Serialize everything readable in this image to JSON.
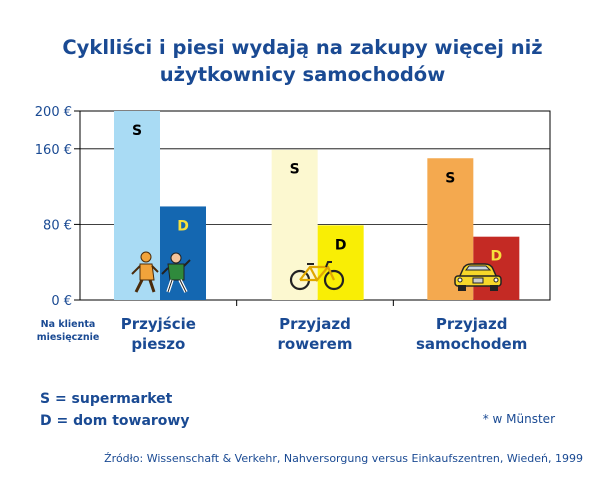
{
  "title_line1": "Cyklliści i piesi wydają na zakupy więcej niż",
  "title_line2": "użytkownicy samochodów",
  "chart_data": {
    "type": "bar",
    "title": "Cyklliści i piesi wydają na zakupy więcej niż użytkownicy samochodów",
    "ylabel": "",
    "ylabel_note": [
      "Na klienta",
      "miesięcznie"
    ],
    "ylim": [
      0,
      200
    ],
    "yticks": [
      0,
      80,
      160,
      200
    ],
    "ytick_labels": [
      "0 €",
      "80 €",
      "160 €",
      "200 €"
    ],
    "grid": true,
    "categories": [
      [
        "Przyjście",
        "pieszo"
      ],
      [
        "Przyjazd",
        "rowerem"
      ],
      [
        "Przyjazd",
        "samochodem"
      ]
    ],
    "series": [
      {
        "name": "S",
        "values": [
          200,
          159,
          150
        ],
        "colors": [
          "#a9dbf4",
          "#fcf8d0",
          "#f4a94f"
        ]
      },
      {
        "name": "D",
        "values": [
          99,
          79,
          67
        ],
        "colors": [
          "#1467b1",
          "#f9ee05",
          "#c42a24"
        ]
      }
    ],
    "bar_label_colors": {
      "S": [
        "#000000",
        "#000000",
        "#000000"
      ],
      "D": [
        "#f6e03c",
        "#000000",
        "#f6e03c"
      ]
    },
    "icons": [
      "pedestrians-icon",
      "bicycle-icon",
      "car-icon"
    ]
  },
  "legend": {
    "s": "S = supermarket",
    "d": "D = dom towarowy"
  },
  "note": "* w Münster",
  "source": "Źródło: Wissenschaft & Verkehr, Nahversorgung versus Einkaufszentren, Wiedeń, 1999"
}
